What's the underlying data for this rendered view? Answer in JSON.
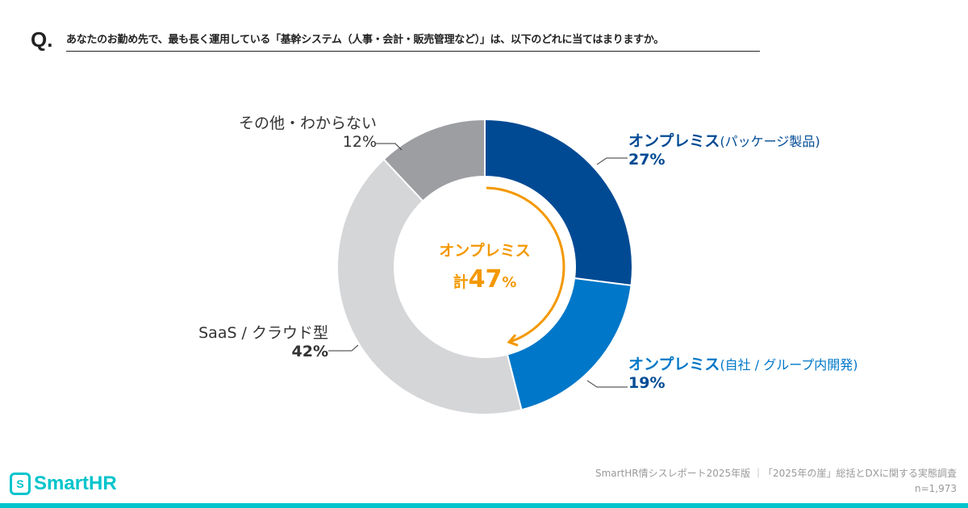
{
  "question": {
    "prefix": "Q.",
    "text": "あなたのお勤め先で、最も長く運用している「基幹システム（人事・会計・販売管理など）」は、以下のどれに当てはまりますか。"
  },
  "chart_data": {
    "type": "pie",
    "donut": true,
    "slices": [
      {
        "name": "オンプレミス",
        "sub": "(パッケージ製品)",
        "value": 27,
        "label": "27%",
        "color": "#004a94"
      },
      {
        "name": "オンプレミス",
        "sub": "(自社 / グループ内開発)",
        "value": 19,
        "label": "19%",
        "color": "#0077c8"
      },
      {
        "name": "SaaS / クラウド型",
        "sub": "",
        "value": 42,
        "label": "42%",
        "color": "#d5d6d8"
      },
      {
        "name": "その他・わからない",
        "sub": "",
        "value": 12,
        "label": "12%",
        "color": "#9d9ea2"
      }
    ],
    "center": {
      "line1": "オンプレミス",
      "line2_prefix": "計",
      "line2_value": "47",
      "line2_unit": "%",
      "color": "#f39800"
    }
  },
  "footer": {
    "source": "SmartHR情シスレポート2025年版 ｜「2025年の崖」総括とDXに関する実態調査",
    "n": "n=1,973",
    "logo": "SmartHR"
  }
}
